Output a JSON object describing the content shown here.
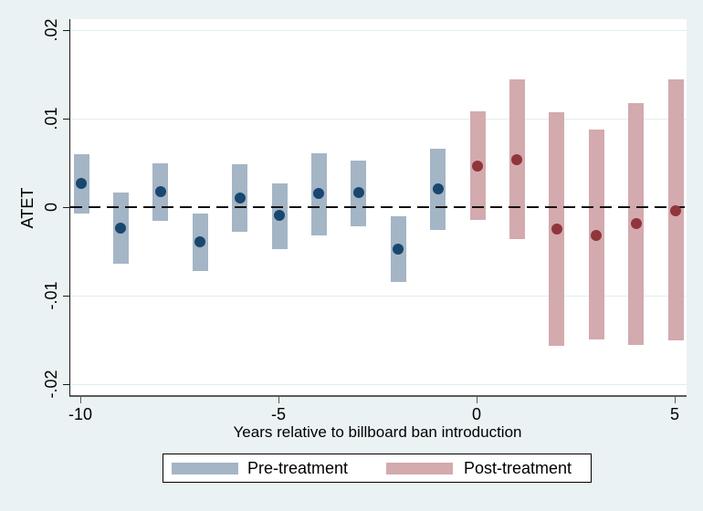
{
  "figure": {
    "background_color": "#eaf2f3",
    "plot_background_color": "#ffffff",
    "gridline_color": "#e2edef",
    "zero_line_style": "dashed-black"
  },
  "chart_data": {
    "type": "scatter",
    "subtype": "event-study point estimates with confidence-interval range bars",
    "title": "",
    "xlabel": "Years relative to billboard ban introduction",
    "ylabel": "ATET",
    "xlim": [
      -10.3,
      5.3
    ],
    "ylim": [
      -0.0212,
      0.0203
    ],
    "grid": "horizontal",
    "y_grid_values": [
      0.02,
      0.01,
      -0.01,
      -0.02
    ],
    "zero_reference_line": 0,
    "x_ticks": [
      -10,
      -5,
      0,
      5
    ],
    "x_tick_labels": [
      "-10",
      "-5",
      "0",
      "5"
    ],
    "y_ticks": [
      0.02,
      0.01,
      0,
      -0.01,
      -0.02
    ],
    "y_tick_labels": [
      ".02",
      ".01",
      "0",
      "-.01",
      "-.02"
    ],
    "legend_position": "bottom",
    "series": [
      {
        "name": "Pre-treatment",
        "bar_color": "#a4b5c6",
        "marker_color": "#1a476f",
        "points": [
          {
            "x": -10,
            "y": 0.0027,
            "ci_low": -0.0007,
            "ci_high": 0.006
          },
          {
            "x": -9,
            "y": -0.0024,
            "ci_low": -0.0064,
            "ci_high": 0.0016
          },
          {
            "x": -8,
            "y": 0.0018,
            "ci_low": -0.0015,
            "ci_high": 0.0049
          },
          {
            "x": -7,
            "y": -0.0039,
            "ci_low": -0.0072,
            "ci_high": -0.0007
          },
          {
            "x": -6,
            "y": 0.001,
            "ci_low": -0.0028,
            "ci_high": 0.0048
          },
          {
            "x": -5,
            "y": -0.0009,
            "ci_low": -0.0047,
            "ci_high": 0.0027
          },
          {
            "x": -4,
            "y": 0.0015,
            "ci_low": -0.0032,
            "ci_high": 0.0061
          },
          {
            "x": -3,
            "y": 0.0016,
            "ci_low": -0.0022,
            "ci_high": 0.0053
          },
          {
            "x": -2,
            "y": -0.0047,
            "ci_low": -0.0085,
            "ci_high": -0.001
          },
          {
            "x": -1,
            "y": 0.0021,
            "ci_low": -0.0026,
            "ci_high": 0.0066
          }
        ]
      },
      {
        "name": "Post-treatment",
        "bar_color": "#d3aaae",
        "marker_color": "#90353b",
        "points": [
          {
            "x": 0,
            "y": 0.0046,
            "ci_low": -0.0014,
            "ci_high": 0.0108
          },
          {
            "x": 1,
            "y": 0.0054,
            "ci_low": -0.0036,
            "ci_high": 0.0144
          },
          {
            "x": 2,
            "y": -0.0025,
            "ci_low": -0.0157,
            "ci_high": 0.0107
          },
          {
            "x": 3,
            "y": -0.0032,
            "ci_low": -0.0149,
            "ci_high": 0.0088
          },
          {
            "x": 4,
            "y": -0.0019,
            "ci_low": -0.0156,
            "ci_high": 0.0118
          },
          {
            "x": 5,
            "y": -0.0004,
            "ci_low": -0.0151,
            "ci_high": 0.0144
          }
        ]
      }
    ]
  }
}
